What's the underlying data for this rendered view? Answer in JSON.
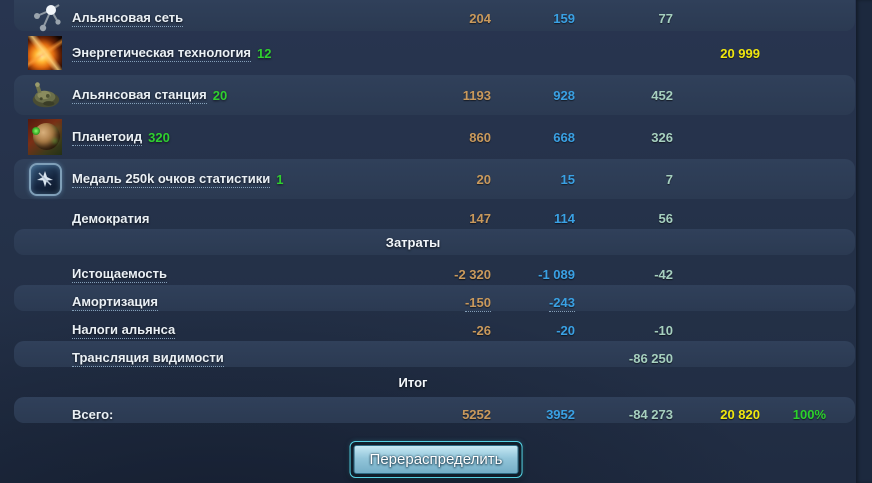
{
  "colors": {
    "col1_metal": "#c9995c",
    "col2_mineral": "#3aa1e4",
    "col3_gas": "#a6d0bf",
    "col4_energy": "#f0e70e",
    "col5_percent": "#2bd22b",
    "count_green": "#2fd02f",
    "row_highlight": "#2d3c52",
    "background": "#243148",
    "button_border": "#55d0e2"
  },
  "table": {
    "rows": [
      {
        "type": "item",
        "icon": "network-icon",
        "label": "Альянсовая сеть",
        "count": "",
        "underline": true,
        "shaded": true,
        "size": "first",
        "values": [
          "204",
          "159",
          "77",
          "",
          ""
        ]
      },
      {
        "type": "item",
        "icon": "energy-icon",
        "label": "Энергетическая технология",
        "count": "12",
        "underline": true,
        "shaded": false,
        "size": "tall",
        "values": [
          "",
          "",
          "",
          "20 999",
          ""
        ]
      },
      {
        "type": "item",
        "icon": "station-icon",
        "label": "Альянсовая станция",
        "count": "20",
        "underline": true,
        "shaded": true,
        "size": "tall",
        "values": [
          "1193",
          "928",
          "452",
          "",
          ""
        ]
      },
      {
        "type": "item",
        "icon": "planetoid-icon",
        "label": "Планетоид",
        "count": "320",
        "underline": true,
        "shaded": false,
        "size": "tall",
        "values": [
          "860",
          "668",
          "326",
          "",
          ""
        ]
      },
      {
        "type": "item",
        "icon": "medal-icon",
        "label": "Медаль 250k очков статистики",
        "count": "1",
        "underline": true,
        "shaded": true,
        "size": "tall",
        "values": [
          "20",
          "15",
          "7",
          "",
          ""
        ]
      },
      {
        "type": "item",
        "icon": null,
        "label": "Демократия",
        "count": "",
        "underline": false,
        "shaded": false,
        "size": "short",
        "values": [
          "147",
          "114",
          "56",
          "",
          ""
        ]
      },
      {
        "type": "section",
        "label": "Затраты",
        "shaded": true,
        "size": "short"
      },
      {
        "type": "item",
        "icon": null,
        "label": "Истощаемость",
        "count": "",
        "underline": true,
        "shaded": false,
        "size": "short",
        "values": [
          "-2 320",
          "-1 089",
          "-42",
          "",
          ""
        ]
      },
      {
        "type": "item",
        "icon": null,
        "label": "Амортизация",
        "count": "",
        "underline": true,
        "shaded": true,
        "size": "short",
        "value_underline": true,
        "values": [
          "-150",
          "-243",
          "",
          "",
          ""
        ]
      },
      {
        "type": "item",
        "icon": null,
        "label": "Налоги альянса",
        "count": "",
        "underline": true,
        "shaded": false,
        "size": "short",
        "values": [
          "-26",
          "-20",
          "-10",
          "",
          ""
        ]
      },
      {
        "type": "item",
        "icon": null,
        "label": "Трансляция видимости",
        "count": "",
        "underline": true,
        "shaded": true,
        "size": "short",
        "values": [
          "",
          "",
          "-86 250",
          "",
          ""
        ]
      },
      {
        "type": "section",
        "label": "Итог",
        "shaded": false,
        "size": "short"
      },
      {
        "type": "total",
        "icon": null,
        "label": "Всего:",
        "count": "",
        "underline": false,
        "shaded": true,
        "size": "short",
        "values": [
          "5252",
          "3952",
          "-84 273",
          "20 820",
          "100%"
        ]
      }
    ]
  },
  "button": {
    "label": "Перераспределить"
  }
}
